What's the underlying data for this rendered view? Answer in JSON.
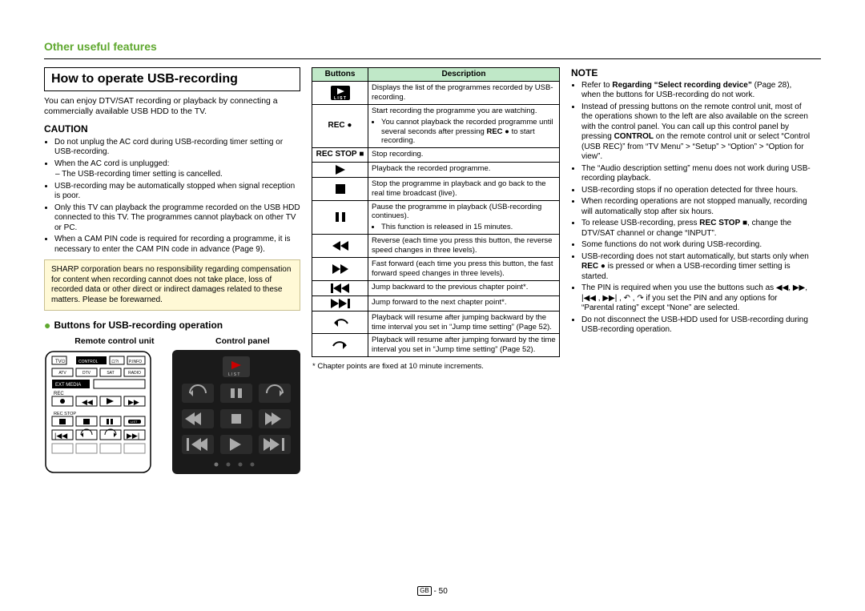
{
  "header": "Other useful features",
  "left": {
    "title": "How to operate USB-recording",
    "intro": "You can enjoy DTV/SAT recording or playback by connecting a commercially available USB HDD to the TV.",
    "caution_head": "CAUTION",
    "caution_bullets": [
      "Do not unplug the AC cord during USB-recording timer setting or USB-recording.",
      "When the AC cord is unplugged:"
    ],
    "caution_sub": "– The USB-recording timer setting is cancelled.",
    "caution_bullets2": [
      "USB-recording may be automatically stopped when signal reception is poor.",
      "Only this TV can playback the programme recorded on the USB HDD connected to this TV. The programmes cannot playback on other TV or PC.",
      "When a CAM PIN code is required for recording a programme, it is necessary to enter the CAM PIN code in advance (Page 9)."
    ],
    "warn_box": "SHARP corporation bears no responsibility regarding compensation for content when recording cannot does not take place, loss of recorded data or other direct or indirect damages related to these matters. Please be forewarned.",
    "buttons_head": "Buttons for USB-recording operation",
    "unit_left": "Remote control unit",
    "unit_right": "Control panel"
  },
  "table": {
    "h1": "Buttons",
    "h2": "Description",
    "rows": [
      {
        "icon": "list",
        "desc": "Displays the list of the programmes recorded by USB-recording."
      },
      {
        "icon": "rec",
        "desc": "Start recording the programme you are watching.",
        "bullets": [
          "You cannot playback the recorded programme until several seconds after pressing <b>REC</b> ● to start recording."
        ]
      },
      {
        "icon": "recstop",
        "desc": "Stop recording."
      },
      {
        "icon": "play",
        "desc": "Playback the recorded programme."
      },
      {
        "icon": "stop",
        "desc": "Stop the programme in playback and go back to the real time broadcast (live)."
      },
      {
        "icon": "pause",
        "desc": "Pause the programme in playback (USB-recording continues).",
        "bullets": [
          "This function is released in 15 minutes."
        ]
      },
      {
        "icon": "rew",
        "desc": "Reverse (each time you press this button, the reverse speed changes in three levels)."
      },
      {
        "icon": "fwd",
        "desc": "Fast forward (each time you press this button, the fast forward speed changes in three levels)."
      },
      {
        "icon": "skipb",
        "desc": "Jump backward to the previous chapter point*."
      },
      {
        "icon": "skipf",
        "desc": "Jump forward to the next chapter point*."
      },
      {
        "icon": "jumpb",
        "desc": "Playback will resume after jumping backward by the time interval you set in “Jump time setting” (Page 52)."
      },
      {
        "icon": "jumpf",
        "desc": "Playback will resume after jumping forward by the time interval you set in “Jump time setting” (Page 52)."
      }
    ],
    "footnote": "*  Chapter points are fixed at 10 minute increments."
  },
  "right": {
    "head": "NOTE",
    "bullets_html": [
      "Refer to <b>Regarding “Select recording device”</b> (Page 28), when the buttons for USB-recording do not work.",
      "Instead of pressing buttons on the remote control unit, most of the operations shown to the left are also available on the screen with the control panel. You can call up this control panel by pressing <b>CONTROL</b> on the remote control unit or select “Control (USB REC)” from “TV Menu” > “Setup” > “Option” > “Option for view”.",
      "The “Audio description setting” menu does not work during USB-recording playback.",
      "USB-recording stops if no operation detected for three hours.",
      "When recording operations are not stopped manually, recording will automatically stop after six hours.",
      "To release USB-recording, press <b>REC STOP</b> ■, change the DTV/SAT channel or change “INPUT”.",
      "Some functions do not work during USB-recording.",
      "USB-recording does not start automatically, but starts only when <b>REC</b> ● is pressed or when a USB-recording timer setting is started.",
      "The PIN is required when you use the buttons such as ◀◀, ▶▶, |◀◀ , ▶▶| , ↶ , ↷ if you set the PIN and any options for “Parental rating” except “None” are selected.",
      "Do not disconnect the USB-HDD used for USB-recording during USB-recording operation."
    ]
  },
  "page_num": "50",
  "colors": {
    "green": "#5fa82f",
    "th_bg": "#c0e8c8",
    "warn_bg": "#fff9d6"
  }
}
